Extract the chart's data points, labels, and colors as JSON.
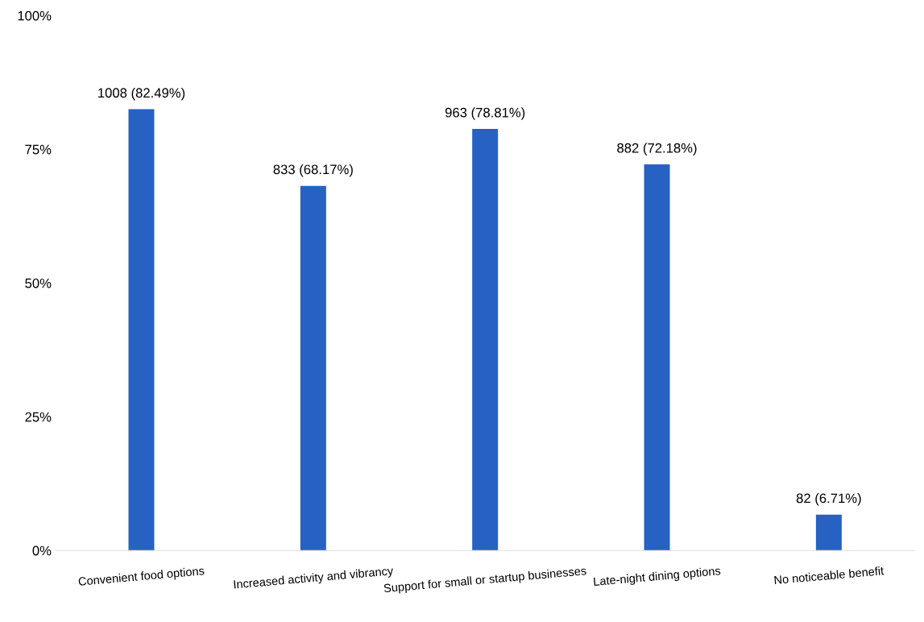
{
  "chart_data": {
    "type": "bar",
    "categories": [
      "Convenient food options",
      "Increased activity and vibrancy",
      "Support for small or startup businesses",
      "Late-night dining options",
      "No noticeable benefit"
    ],
    "values": [
      82.49,
      68.17,
      78.81,
      72.18,
      6.71
    ],
    "value_labels": [
      "1008 (82.49%)",
      "833 (68.17%)",
      "963 (78.81%)",
      "882 (72.18%)",
      "82 (6.71%)"
    ],
    "color": "#2762c2",
    "ylim": [
      0,
      100
    ],
    "yticks": [
      {
        "value": 0,
        "label": "0%"
      },
      {
        "value": 25,
        "label": "25%"
      },
      {
        "value": 50,
        "label": "50%"
      },
      {
        "value": 75,
        "label": "75%"
      },
      {
        "value": 100,
        "label": "100%"
      }
    ],
    "grid": false,
    "legend": false
  }
}
